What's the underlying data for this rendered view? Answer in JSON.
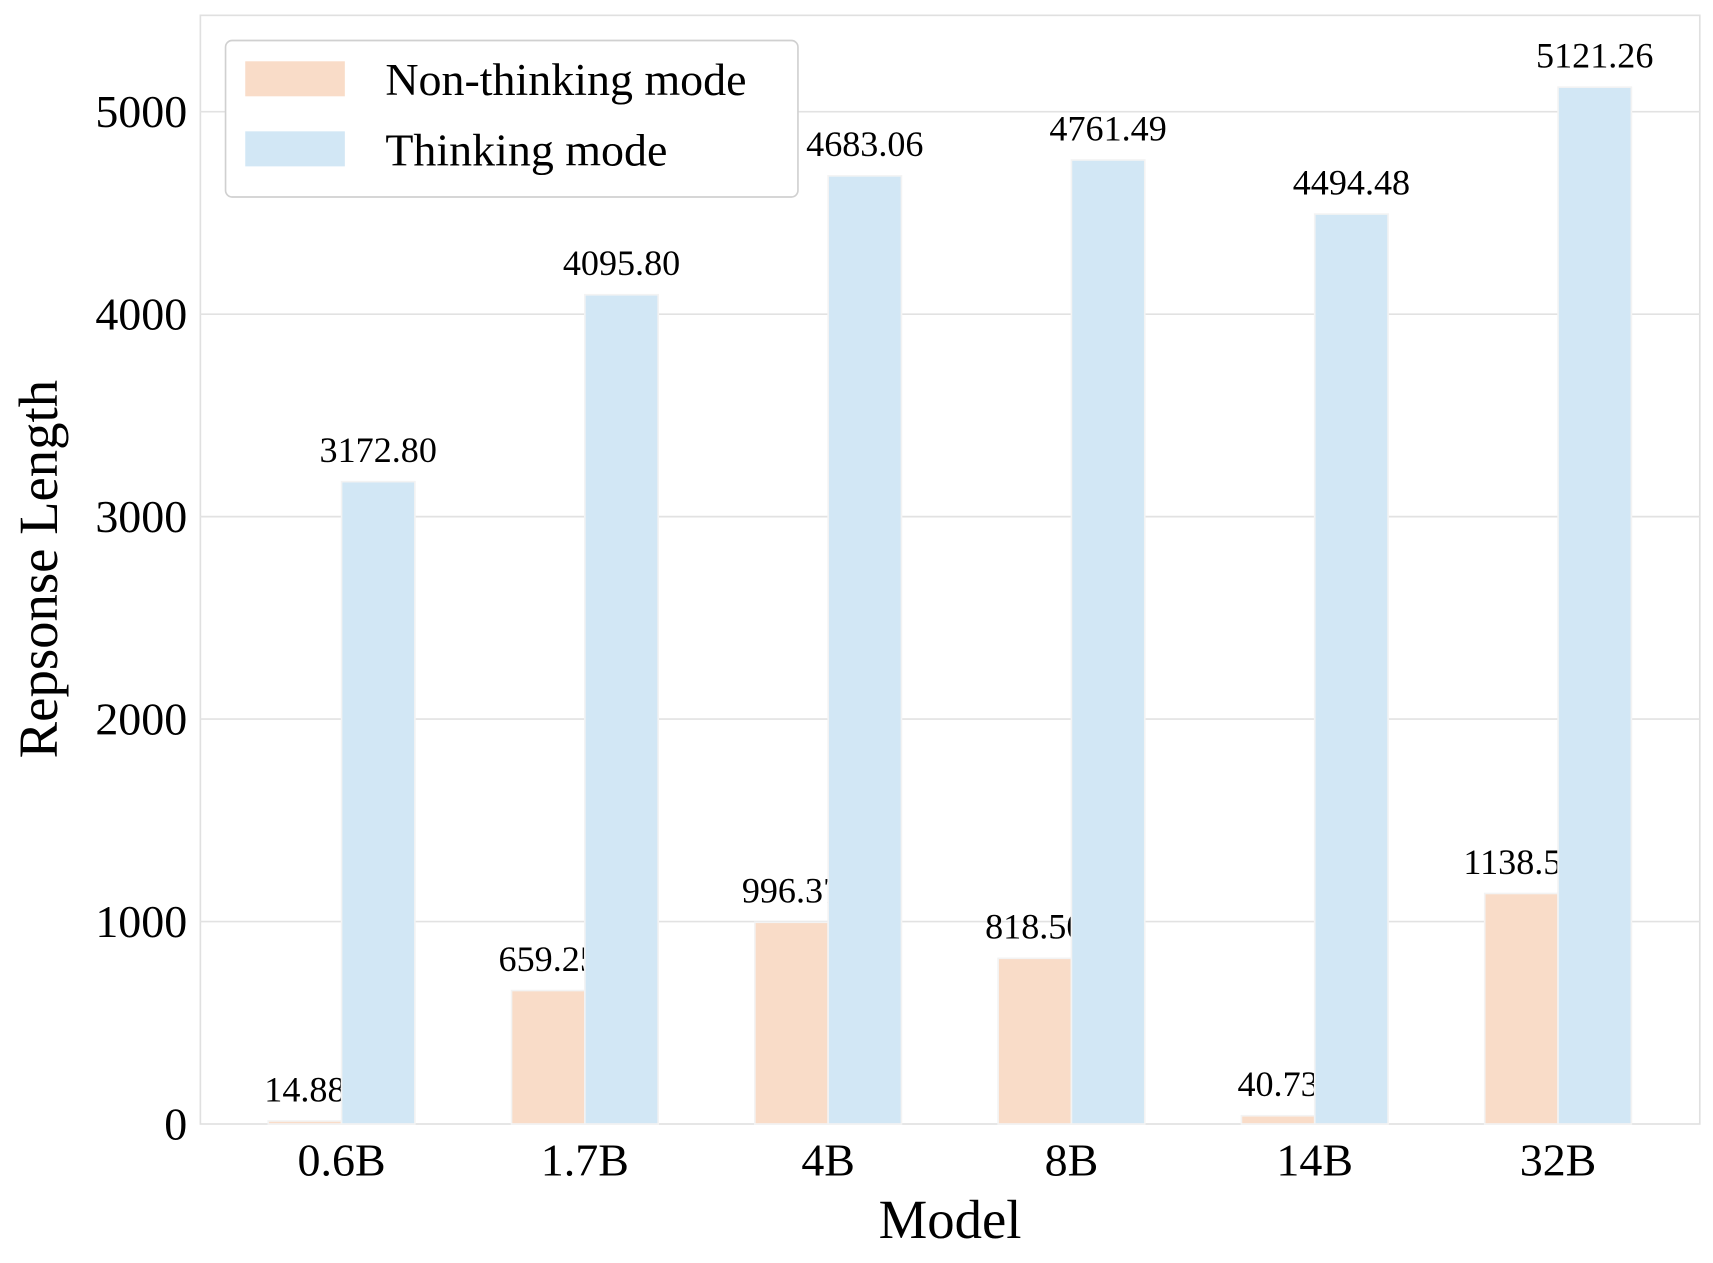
{
  "chart_data": {
    "type": "bar",
    "title": "",
    "xlabel": "Model",
    "ylabel": "Repsonse Length",
    "categories": [
      "0.6B",
      "1.7B",
      "4B",
      "8B",
      "14B",
      "32B"
    ],
    "series": [
      {
        "name": "Non-thinking mode",
        "color": "#f9dcc8",
        "values": [
          14.88,
          659.25,
          996.37,
          818.5,
          40.73,
          1138.55
        ],
        "labels": [
          "14.88",
          "659.25",
          "996.37",
          "818.50",
          "40.73",
          "1138.55"
        ]
      },
      {
        "name": "Thinking mode",
        "color": "#d2e7f5",
        "values": [
          3172.8,
          4095.8,
          4683.06,
          4761.49,
          4494.48,
          5121.26
        ],
        "labels": [
          "3172.80",
          "4095.80",
          "4683.06",
          "4761.49",
          "4494.48",
          "5121.26"
        ]
      }
    ],
    "yticks": [
      "0",
      "1000",
      "2000",
      "3000",
      "4000",
      "5000"
    ],
    "ylim": [
      0,
      5476
    ],
    "grid": true,
    "legend": "top-left"
  }
}
